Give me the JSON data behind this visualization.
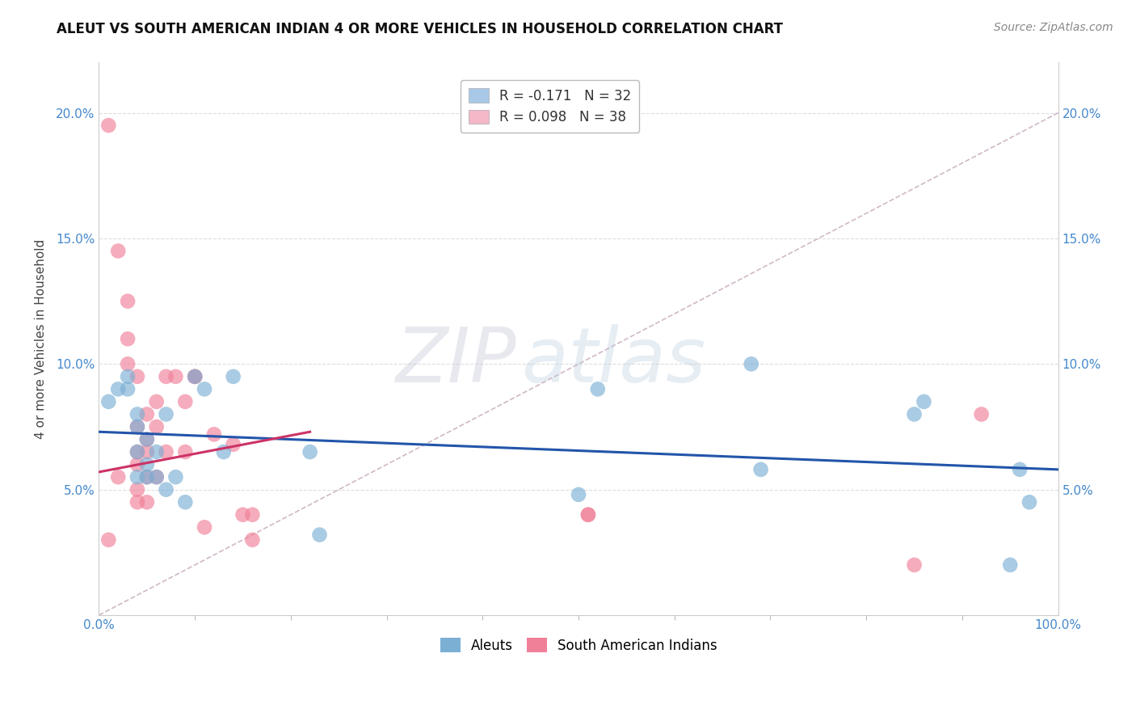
{
  "title": "ALEUT VS SOUTH AMERICAN INDIAN 4 OR MORE VEHICLES IN HOUSEHOLD CORRELATION CHART",
  "source": "Source: ZipAtlas.com",
  "ylabel": "4 or more Vehicles in Household",
  "xlim": [
    0,
    1.0
  ],
  "ylim": [
    0,
    0.22
  ],
  "yticks": [
    0.05,
    0.1,
    0.15,
    0.2
  ],
  "yticklabels": [
    "5.0%",
    "10.0%",
    "15.0%",
    "20.0%"
  ],
  "xtick_positions": [
    0.0,
    1.0
  ],
  "xticklabels": [
    "0.0%",
    "100.0%"
  ],
  "legend_entries": [
    {
      "label": "R = -0.171   N = 32",
      "color": "#a8c8e8"
    },
    {
      "label": "R = 0.098   N = 38",
      "color": "#f4b8c8"
    }
  ],
  "aleuts_color": "#7bafd4",
  "south_am_color": "#f08098",
  "aleuts_line_color": "#2255aa",
  "south_am_line_color": "#cc3366",
  "diag_line_color": "#d0b8c8",
  "watermark_zip": "ZIP",
  "watermark_atlas": "atlas",
  "aleuts_x": [
    0.01,
    0.02,
    0.03,
    0.03,
    0.04,
    0.04,
    0.04,
    0.04,
    0.05,
    0.05,
    0.05,
    0.06,
    0.06,
    0.07,
    0.07,
    0.08,
    0.09,
    0.1,
    0.11,
    0.13,
    0.14,
    0.22,
    0.23,
    0.5,
    0.52,
    0.68,
    0.69,
    0.85,
    0.86,
    0.95,
    0.96,
    0.97
  ],
  "aleuts_y": [
    0.085,
    0.09,
    0.095,
    0.09,
    0.075,
    0.08,
    0.065,
    0.055,
    0.07,
    0.06,
    0.055,
    0.065,
    0.055,
    0.08,
    0.05,
    0.055,
    0.045,
    0.095,
    0.09,
    0.065,
    0.095,
    0.065,
    0.032,
    0.048,
    0.09,
    0.1,
    0.058,
    0.08,
    0.085,
    0.02,
    0.058,
    0.045
  ],
  "south_am_x": [
    0.01,
    0.01,
    0.02,
    0.02,
    0.03,
    0.03,
    0.03,
    0.04,
    0.04,
    0.04,
    0.04,
    0.04,
    0.04,
    0.05,
    0.05,
    0.05,
    0.05,
    0.05,
    0.06,
    0.06,
    0.06,
    0.07,
    0.07,
    0.08,
    0.09,
    0.09,
    0.1,
    0.1,
    0.11,
    0.12,
    0.14,
    0.15,
    0.16,
    0.16,
    0.51,
    0.51,
    0.85,
    0.92
  ],
  "south_am_y": [
    0.195,
    0.03,
    0.145,
    0.055,
    0.125,
    0.11,
    0.1,
    0.095,
    0.075,
    0.065,
    0.06,
    0.05,
    0.045,
    0.08,
    0.07,
    0.065,
    0.055,
    0.045,
    0.085,
    0.075,
    0.055,
    0.095,
    0.065,
    0.095,
    0.085,
    0.065,
    0.095,
    0.095,
    0.035,
    0.072,
    0.068,
    0.04,
    0.04,
    0.03,
    0.04,
    0.04,
    0.02,
    0.08
  ],
  "aleuts_trend": [
    0.0,
    0.073,
    1.0,
    0.058
  ],
  "south_am_trend": [
    0.0,
    0.057,
    0.22,
    0.073
  ],
  "diag_trend": [
    0.0,
    0.0,
    1.0,
    0.2
  ],
  "background_color": "#ffffff",
  "grid_color": "#dddddd",
  "title_fontsize": 12,
  "label_fontsize": 11,
  "tick_fontsize": 11,
  "source_fontsize": 10
}
